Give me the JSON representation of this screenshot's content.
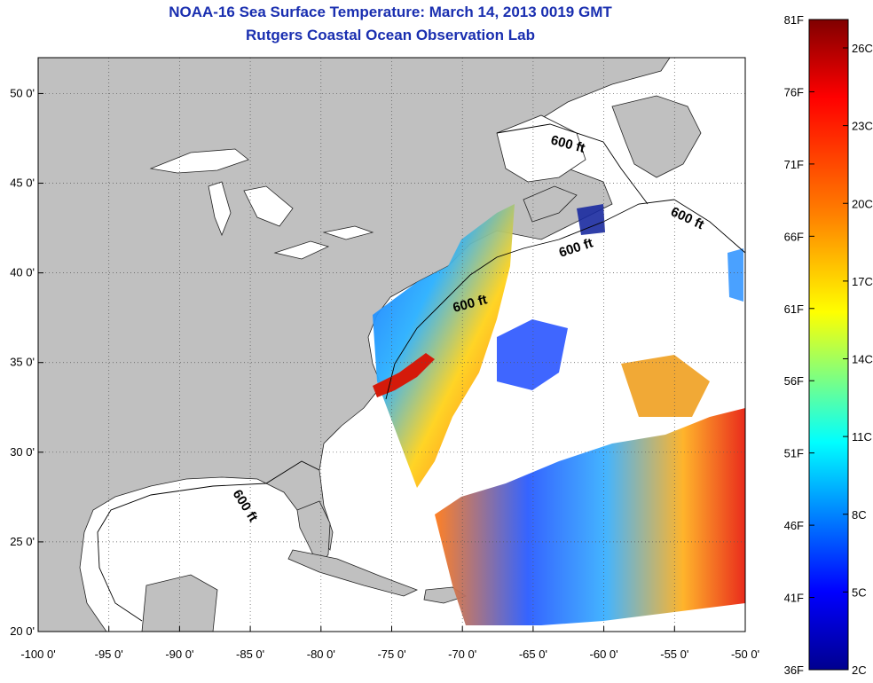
{
  "title": "NOAA-16 Sea Surface Temperature:  March 14, 2013 0019 GMT",
  "subtitle": "Rutgers Coastal Ocean Observation Lab",
  "map": {
    "lon_range": [
      -100,
      -50
    ],
    "lat_range": [
      20,
      52
    ],
    "grid": "dotted",
    "land_color": "#c0c0c0",
    "water_color": "#ffffff",
    "lon_ticks": [
      {
        "value": -100,
        "label": "-100 0'"
      },
      {
        "value": -95,
        "label": "-95 0'"
      },
      {
        "value": -90,
        "label": "-90 0'"
      },
      {
        "value": -85,
        "label": "-85 0'"
      },
      {
        "value": -80,
        "label": "-80 0'"
      },
      {
        "value": -75,
        "label": "-75 0'"
      },
      {
        "value": -70,
        "label": "-70 0'"
      },
      {
        "value": -65,
        "label": "-65 0'"
      },
      {
        "value": -60,
        "label": "-60 0'"
      },
      {
        "value": -55,
        "label": "-55 0'"
      },
      {
        "value": -50,
        "label": "-50 0'"
      }
    ],
    "lat_ticks": [
      {
        "value": 50,
        "label": "50 0'"
      },
      {
        "value": 45,
        "label": "45 0'"
      },
      {
        "value": 40,
        "label": "40 0'"
      },
      {
        "value": 35,
        "label": "35 0'"
      },
      {
        "value": 30,
        "label": "30 0'"
      },
      {
        "value": 25,
        "label": "25 0'"
      },
      {
        "value": 20,
        "label": "20 0'"
      }
    ],
    "contour_labels": [
      "600 ft",
      "600 ft",
      "600 ft",
      "600 ft",
      "600 ft"
    ]
  },
  "colorbar": {
    "colors": [
      "#00008f",
      "#0000ff",
      "#0080ff",
      "#00ffff",
      "#80ff80",
      "#ffff00",
      "#ff8000",
      "#ff0000",
      "#800000"
    ],
    "fahrenheit_labels": [
      "81F",
      "76F",
      "71F",
      "66F",
      "61F",
      "56F",
      "51F",
      "46F",
      "41F",
      "36F"
    ],
    "celsius_labels": [
      "26C",
      "23C",
      "20C",
      "17C",
      "14C",
      "11C",
      "8C",
      "5C",
      "2C"
    ]
  }
}
